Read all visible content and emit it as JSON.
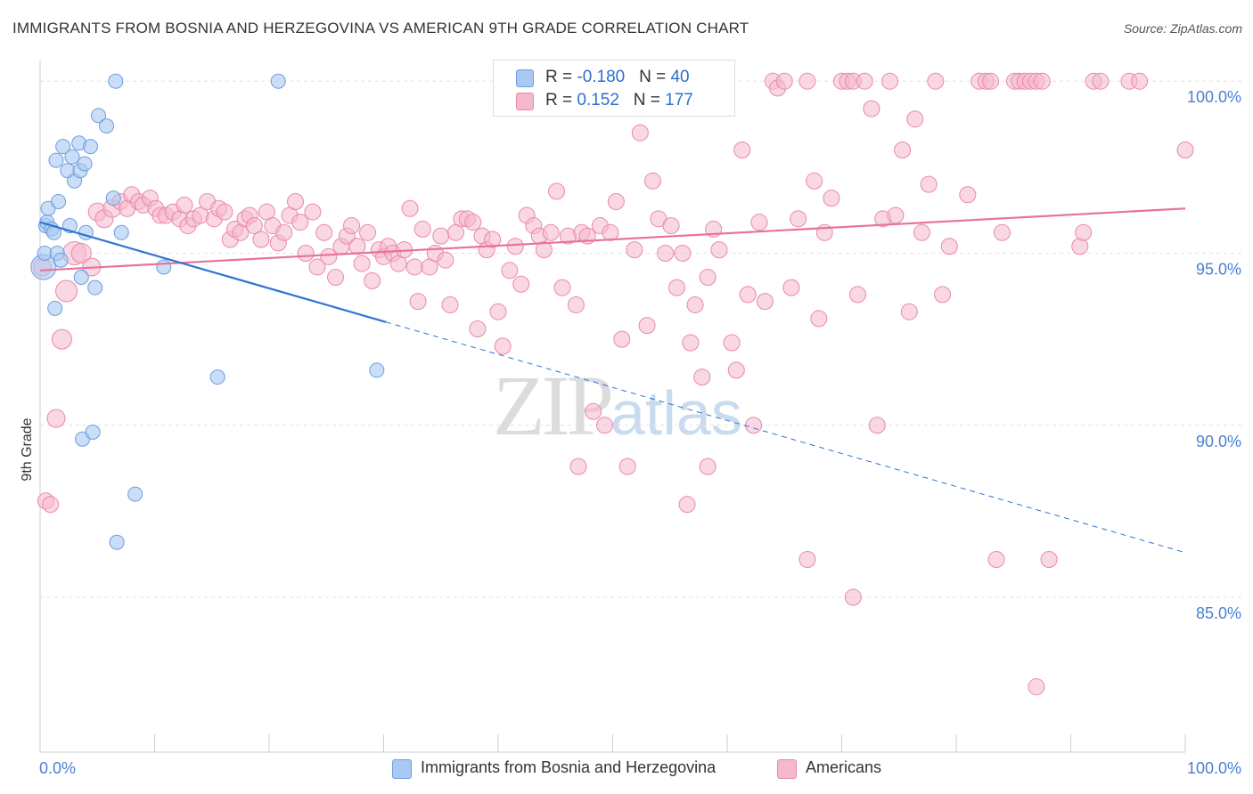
{
  "title": "IMMIGRANTS FROM BOSNIA AND HERZEGOVINA VS AMERICAN 9TH GRADE CORRELATION CHART",
  "source": "Source: ZipAtlas.com",
  "watermark": {
    "zip": "ZIP",
    "atlas": "atlas"
  },
  "legend": {
    "rows": [
      {
        "r_label": "R = ",
        "r_value": "-0.180",
        "n_label": "N = ",
        "n_value": "40",
        "color": "#a9c8f2"
      },
      {
        "r_label": "R = ",
        "r_value": "0.152",
        "n_label": "N = ",
        "n_value": "177",
        "color": "#f5b8cc"
      }
    ]
  },
  "bottom_legend": {
    "series1": "Immigrants from Bosnia and Herzegovina",
    "series2": "Americans"
  },
  "chart_data": {
    "type": "scatter",
    "ylabel": "9th Grade",
    "x_tick_labels": [
      "0.0%",
      "100.0%"
    ],
    "y_tick_labels": [
      "100.0%",
      "95.0%",
      "90.0%",
      "85.0%"
    ],
    "xlim": [
      0,
      100
    ],
    "ylim": [
      80.5,
      100.6
    ],
    "y_ticks": [
      100,
      95,
      90,
      85
    ],
    "grid": true,
    "colors": {
      "blue_fill": "#a9c8f2",
      "blue_edge": "#6d9de0",
      "blue_line": "#2f74d0",
      "pink_fill": "#f5b8cc",
      "pink_edge": "#e889a8",
      "pink_line": "#e8729a"
    },
    "series": [
      {
        "name": "Immigrants from Bosnia and Herzegovina",
        "trend": {
          "x0": 0,
          "y0": 95.9,
          "x1": 30.2,
          "y1": 93.0,
          "dash_x1": 100,
          "dash_y1": 86.3
        },
        "points": [
          [
            0.3,
            94.6,
            14
          ],
          [
            0.4,
            95.0,
            8
          ],
          [
            0.5,
            95.8,
            8
          ],
          [
            0.6,
            95.9,
            8
          ],
          [
            0.7,
            96.3,
            8
          ],
          [
            1.0,
            95.7,
            8
          ],
          [
            1.2,
            95.6,
            8
          ],
          [
            1.4,
            97.7,
            8
          ],
          [
            1.5,
            95.0,
            8
          ],
          [
            1.6,
            96.5,
            8
          ],
          [
            1.8,
            94.8,
            8
          ],
          [
            2.0,
            98.1,
            8
          ],
          [
            2.4,
            97.4,
            8
          ],
          [
            2.6,
            95.8,
            8
          ],
          [
            2.8,
            97.8,
            8
          ],
          [
            3.0,
            97.1,
            8
          ],
          [
            3.4,
            98.2,
            8
          ],
          [
            3.5,
            97.4,
            8
          ],
          [
            3.6,
            94.3,
            8
          ],
          [
            3.9,
            97.6,
            8
          ],
          [
            4.0,
            95.6,
            8
          ],
          [
            4.4,
            98.1,
            8
          ],
          [
            4.8,
            94.0,
            8
          ],
          [
            5.1,
            99.0,
            8
          ],
          [
            5.8,
            98.7,
            8
          ],
          [
            6.4,
            96.6,
            8
          ],
          [
            6.6,
            100.0,
            8
          ],
          [
            7.1,
            95.6,
            8
          ],
          [
            1.3,
            93.4,
            8
          ],
          [
            3.7,
            89.6,
            8
          ],
          [
            4.6,
            89.8,
            8
          ],
          [
            6.7,
            86.6,
            8
          ],
          [
            8.3,
            88.0,
            8
          ],
          [
            10.8,
            94.6,
            8
          ],
          [
            15.5,
            91.4,
            8
          ],
          [
            20.8,
            100.0,
            8
          ],
          [
            29.4,
            91.6,
            8
          ]
        ]
      },
      {
        "name": "Americans",
        "trend": {
          "x0": 0,
          "y0": 94.5,
          "x1": 100,
          "y1": 96.3
        },
        "points": [
          [
            0.2,
            94.6,
            10
          ],
          [
            0.5,
            87.8,
            9
          ],
          [
            0.9,
            87.7,
            9
          ],
          [
            1.4,
            90.2,
            10
          ],
          [
            1.9,
            92.5,
            11
          ],
          [
            2.3,
            93.9,
            12
          ],
          [
            3.0,
            95.0,
            13
          ],
          [
            3.6,
            95.0,
            11
          ],
          [
            4.5,
            94.6,
            10
          ],
          [
            5.0,
            96.2,
            10
          ],
          [
            5.6,
            96.0,
            10
          ],
          [
            6.3,
            96.3,
            10
          ],
          [
            7.0,
            96.5,
            9
          ],
          [
            7.6,
            96.3,
            9
          ],
          [
            8.0,
            96.7,
            9
          ],
          [
            8.6,
            96.5,
            9
          ],
          [
            9.0,
            96.4,
            9
          ],
          [
            9.6,
            96.6,
            9
          ],
          [
            10.1,
            96.3,
            9
          ],
          [
            10.5,
            96.1,
            9
          ],
          [
            11.0,
            96.1,
            9
          ],
          [
            11.6,
            96.2,
            9
          ],
          [
            12.2,
            96.0,
            9
          ],
          [
            12.6,
            96.4,
            9
          ],
          [
            12.9,
            95.8,
            9
          ],
          [
            13.4,
            96.0,
            9
          ],
          [
            14.0,
            96.1,
            9
          ],
          [
            14.6,
            96.5,
            9
          ],
          [
            15.2,
            96.0,
            9
          ],
          [
            15.6,
            96.3,
            9
          ],
          [
            16.1,
            96.2,
            9
          ],
          [
            16.6,
            95.4,
            9
          ],
          [
            17.0,
            95.7,
            9
          ],
          [
            17.5,
            95.6,
            9
          ],
          [
            17.9,
            96.0,
            9
          ],
          [
            18.3,
            96.1,
            9
          ],
          [
            18.7,
            95.8,
            9
          ],
          [
            19.3,
            95.4,
            9
          ],
          [
            19.8,
            96.2,
            9
          ],
          [
            20.3,
            95.8,
            9
          ],
          [
            20.8,
            95.3,
            9
          ],
          [
            21.3,
            95.6,
            9
          ],
          [
            21.8,
            96.1,
            9
          ],
          [
            22.3,
            96.5,
            9
          ],
          [
            22.7,
            95.9,
            9
          ],
          [
            23.2,
            95.0,
            9
          ],
          [
            23.8,
            96.2,
            9
          ],
          [
            24.2,
            94.6,
            9
          ],
          [
            24.8,
            95.6,
            9
          ],
          [
            25.2,
            94.9,
            9
          ],
          [
            25.8,
            94.3,
            9
          ],
          [
            26.3,
            95.2,
            9
          ],
          [
            26.8,
            95.5,
            9
          ],
          [
            27.2,
            95.8,
            9
          ],
          [
            27.7,
            95.2,
            9
          ],
          [
            28.1,
            94.7,
            9
          ],
          [
            28.6,
            95.6,
            9
          ],
          [
            29.0,
            94.2,
            9
          ],
          [
            29.6,
            95.1,
            9
          ],
          [
            30.0,
            94.9,
            9
          ],
          [
            30.4,
            95.2,
            9
          ],
          [
            30.8,
            95.0,
            9
          ],
          [
            31.3,
            94.7,
            9
          ],
          [
            31.8,
            95.1,
            9
          ],
          [
            32.3,
            96.3,
            9
          ],
          [
            32.7,
            94.6,
            9
          ],
          [
            33.0,
            93.6,
            9
          ],
          [
            33.4,
            95.7,
            9
          ],
          [
            34.0,
            94.6,
            9
          ],
          [
            34.5,
            95.0,
            9
          ],
          [
            35.0,
            95.5,
            9
          ],
          [
            35.4,
            94.8,
            9
          ],
          [
            35.8,
            93.5,
            9
          ],
          [
            36.3,
            95.6,
            9
          ],
          [
            36.8,
            96.0,
            9
          ],
          [
            37.3,
            96.0,
            9
          ],
          [
            37.8,
            95.9,
            9
          ],
          [
            38.2,
            92.8,
            9
          ],
          [
            38.6,
            95.5,
            9
          ],
          [
            39.0,
            95.1,
            9
          ],
          [
            39.5,
            95.4,
            9
          ],
          [
            40.0,
            93.3,
            9
          ],
          [
            40.4,
            92.3,
            9
          ],
          [
            41.0,
            94.5,
            9
          ],
          [
            41.5,
            95.2,
            9
          ],
          [
            42.0,
            94.1,
            9
          ],
          [
            42.5,
            96.1,
            9
          ],
          [
            43.1,
            95.8,
            9
          ],
          [
            43.6,
            95.5,
            9
          ],
          [
            44.0,
            95.1,
            9
          ],
          [
            44.6,
            95.6,
            9
          ],
          [
            45.1,
            96.8,
            9
          ],
          [
            45.6,
            94.0,
            9
          ],
          [
            46.1,
            95.5,
            9
          ],
          [
            46.8,
            93.5,
            9
          ],
          [
            47.3,
            95.6,
            9
          ],
          [
            47.8,
            95.5,
            9
          ],
          [
            48.3,
            90.4,
            9
          ],
          [
            48.9,
            95.8,
            9
          ],
          [
            49.3,
            90.0,
            9
          ],
          [
            49.8,
            95.6,
            9
          ],
          [
            50.3,
            96.5,
            9
          ],
          [
            50.8,
            92.5,
            9
          ],
          [
            51.3,
            88.8,
            9
          ],
          [
            51.9,
            95.1,
            9
          ],
          [
            52.4,
            98.5,
            9
          ],
          [
            53.0,
            92.9,
            9
          ],
          [
            53.5,
            97.1,
            9
          ],
          [
            54.0,
            96.0,
            9
          ],
          [
            54.6,
            95.0,
            9
          ],
          [
            55.1,
            95.8,
            9
          ],
          [
            55.6,
            94.0,
            9
          ],
          [
            56.1,
            95.0,
            9
          ],
          [
            56.8,
            92.4,
            9
          ],
          [
            57.2,
            93.5,
            9
          ],
          [
            57.8,
            91.4,
            9
          ],
          [
            58.3,
            94.3,
            9
          ],
          [
            58.8,
            95.7,
            9
          ],
          [
            59.3,
            95.1,
            9
          ],
          [
            59.9,
            100.0,
            9
          ],
          [
            60.4,
            92.4,
            9
          ],
          [
            60.8,
            91.6,
            9
          ],
          [
            61.3,
            98.0,
            9
          ],
          [
            61.8,
            93.8,
            9
          ],
          [
            62.3,
            90.0,
            9
          ],
          [
            62.8,
            95.9,
            9
          ],
          [
            63.3,
            93.6,
            9
          ],
          [
            64.0,
            100.0,
            9
          ],
          [
            64.4,
            99.8,
            9
          ],
          [
            65.0,
            100.0,
            9
          ],
          [
            65.6,
            94.0,
            9
          ],
          [
            66.2,
            96.0,
            9
          ],
          [
            67.0,
            100.0,
            9
          ],
          [
            67.6,
            97.1,
            9
          ],
          [
            68.0,
            93.1,
            9
          ],
          [
            68.5,
            95.6,
            9
          ],
          [
            69.1,
            96.6,
            9
          ],
          [
            70.0,
            100.0,
            9
          ],
          [
            70.5,
            100.0,
            9
          ],
          [
            71.0,
            100.0,
            9
          ],
          [
            71.4,
            93.8,
            9
          ],
          [
            72.0,
            100.0,
            9
          ],
          [
            72.6,
            99.2,
            9
          ],
          [
            73.1,
            90.0,
            9
          ],
          [
            73.6,
            96.0,
            9
          ],
          [
            74.2,
            100.0,
            9
          ],
          [
            74.7,
            96.1,
            9
          ],
          [
            75.3,
            98.0,
            9
          ],
          [
            75.9,
            93.3,
            9
          ],
          [
            76.4,
            98.9,
            9
          ],
          [
            77.0,
            95.6,
            9
          ],
          [
            77.6,
            97.0,
            9
          ],
          [
            78.2,
            100.0,
            9
          ],
          [
            78.8,
            93.8,
            9
          ],
          [
            79.4,
            95.2,
            9
          ],
          [
            81.0,
            96.7,
            9
          ],
          [
            82.0,
            100.0,
            9
          ],
          [
            82.6,
            100.0,
            9
          ],
          [
            83.0,
            100.0,
            9
          ],
          [
            84.0,
            95.6,
            9
          ],
          [
            85.1,
            100.0,
            9
          ],
          [
            85.5,
            100.0,
            9
          ],
          [
            86.0,
            100.0,
            9
          ],
          [
            86.5,
            100.0,
            9
          ],
          [
            87.0,
            100.0,
            9
          ],
          [
            87.5,
            100.0,
            9
          ],
          [
            88.1,
            86.1,
            9
          ],
          [
            90.8,
            95.2,
            9
          ],
          [
            91.1,
            95.6,
            9
          ],
          [
            92.0,
            100.0,
            9
          ],
          [
            92.6,
            100.0,
            9
          ],
          [
            95.1,
            100.0,
            9
          ],
          [
            96.0,
            100.0,
            9
          ],
          [
            100.0,
            98.0,
            9
          ],
          [
            47.0,
            88.8,
            9
          ],
          [
            56.5,
            87.7,
            9
          ],
          [
            58.3,
            88.8,
            9
          ],
          [
            67.0,
            86.1,
            9
          ],
          [
            71.0,
            85.0,
            9
          ],
          [
            83.5,
            86.1,
            9
          ],
          [
            87.0,
            82.4,
            9
          ]
        ]
      }
    ]
  }
}
